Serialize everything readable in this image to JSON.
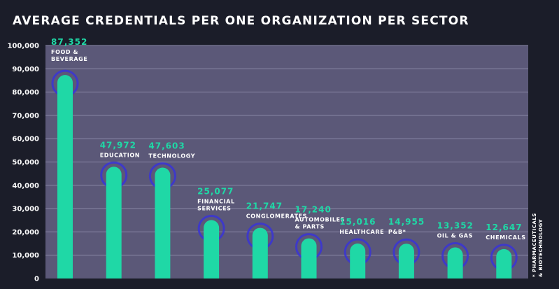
{
  "chart_data": {
    "type": "bar",
    "title": "AVERAGE CREDENTIALS PER ONE ORGANIZATION PER SECTOR",
    "categories": [
      [
        "FOOD &",
        "BEVERAGE"
      ],
      [
        "EDUCATION"
      ],
      [
        "TECHNOLOGY"
      ],
      [
        "FINANCIAL",
        "SERVICES"
      ],
      [
        "CONGLOMERATES"
      ],
      [
        "AUTOMOBILES",
        "& PARTS"
      ],
      [
        "HEALTHCARE"
      ],
      [
        "P&B*"
      ],
      [
        "OIL & GAS"
      ],
      [
        "CHEMICALS"
      ]
    ],
    "values": [
      87352,
      47972,
      47603,
      25077,
      21747,
      17240,
      15016,
      14955,
      13352,
      12647
    ],
    "value_labels": [
      "87,352",
      "47,972",
      "47,603",
      "25,077",
      "21,747",
      "17,240",
      "15,016",
      "14,955",
      "13,352",
      "12,647"
    ],
    "yticks": [
      0,
      10000,
      20000,
      30000,
      40000,
      50000,
      60000,
      70000,
      80000,
      90000,
      100000
    ],
    "ytick_labels": [
      "0",
      "10,000",
      "20,000",
      "30,000",
      "40,000",
      "50,000",
      "60,000",
      "70,000",
      "80,000",
      "90,000",
      "100,000"
    ],
    "ylim": [
      0,
      100000
    ],
    "xlabel": "",
    "ylabel": "",
    "grid": true,
    "footnote": [
      "* PHARMACEUTICALS",
      "& BIOTECHNOLOGY"
    ],
    "colors": {
      "background": "#1b1d29",
      "plot_background": "#5b5878",
      "bar": "#1fd8a6",
      "ring": "#3a34d6",
      "grid": "#8a87a6",
      "value_text": "#1fd8a6",
      "label_text": "#ffffff"
    }
  }
}
